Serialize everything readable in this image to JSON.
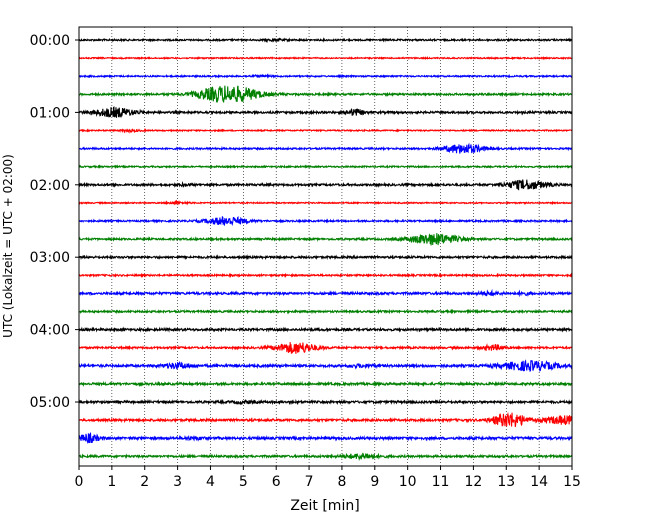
{
  "chart_data": {
    "type": "line",
    "title": "",
    "xlabel": "Zeit  [min]",
    "ylabel": "UTC (Lokalzeit = UTC + 02:00)",
    "xlim": [
      0,
      15
    ],
    "x_ticks": [
      "0",
      "1",
      "2",
      "3",
      "4",
      "5",
      "6",
      "7",
      "8",
      "9",
      "10",
      "11",
      "12",
      "13",
      "14",
      "15"
    ],
    "y_tick_labels": [
      "00:00",
      "01:00",
      "02:00",
      "03:00",
      "04:00",
      "05:00"
    ],
    "row_minutes": 15,
    "grid": "vertical dotted at each minute",
    "colors": [
      "#000000",
      "#ff0000",
      "#0000ff",
      "#008000"
    ],
    "traces": [
      {
        "row": 0,
        "color": "#000000",
        "noise": 0.8,
        "events": [
          [
            6.0,
            0.3,
            0.8
          ]
        ]
      },
      {
        "row": 1,
        "color": "#ff0000",
        "noise": 0.6,
        "events": []
      },
      {
        "row": 2,
        "color": "#0000ff",
        "noise": 0.7,
        "events": [
          [
            5.5,
            0.3,
            0.8
          ]
        ]
      },
      {
        "row": 3,
        "color": "#008000",
        "noise": 0.9,
        "events": [
          [
            4.7,
            0.8,
            7.5
          ],
          [
            4.0,
            0.6,
            2.5
          ]
        ]
      },
      {
        "row": 4,
        "color": "#000000",
        "noise": 1.0,
        "events": [
          [
            1.1,
            0.6,
            4.5
          ],
          [
            8.4,
            0.25,
            3.0
          ]
        ]
      },
      {
        "row": 5,
        "color": "#ff0000",
        "noise": 0.6,
        "events": [
          [
            1.6,
            0.3,
            0.8
          ]
        ]
      },
      {
        "row": 6,
        "color": "#0000ff",
        "noise": 0.8,
        "events": [
          [
            11.7,
            0.6,
            4.5
          ]
        ]
      },
      {
        "row": 7,
        "color": "#008000",
        "noise": 0.7,
        "events": []
      },
      {
        "row": 8,
        "color": "#000000",
        "noise": 1.0,
        "events": [
          [
            13.6,
            0.6,
            4.5
          ],
          [
            3.2,
            0.2,
            1.0
          ]
        ]
      },
      {
        "row": 9,
        "color": "#ff0000",
        "noise": 0.6,
        "events": [
          [
            3.0,
            0.3,
            1.0
          ]
        ]
      },
      {
        "row": 10,
        "color": "#0000ff",
        "noise": 0.8,
        "events": [
          [
            4.5,
            0.6,
            4.0
          ]
        ]
      },
      {
        "row": 11,
        "color": "#008000",
        "noise": 0.9,
        "events": [
          [
            10.8,
            0.7,
            5.5
          ]
        ]
      },
      {
        "row": 12,
        "color": "#000000",
        "noise": 1.0,
        "events": []
      },
      {
        "row": 13,
        "color": "#ff0000",
        "noise": 0.8,
        "events": []
      },
      {
        "row": 14,
        "color": "#0000ff",
        "noise": 1.1,
        "events": [
          [
            12.5,
            0.3,
            1.5
          ],
          [
            13.5,
            0.2,
            1.2
          ]
        ]
      },
      {
        "row": 15,
        "color": "#008000",
        "noise": 0.9,
        "events": []
      },
      {
        "row": 16,
        "color": "#000000",
        "noise": 1.1,
        "events": []
      },
      {
        "row": 17,
        "color": "#ff0000",
        "noise": 0.9,
        "events": [
          [
            6.6,
            0.6,
            5.5
          ],
          [
            12.6,
            0.3,
            2.5
          ]
        ]
      },
      {
        "row": 18,
        "color": "#0000ff",
        "noise": 1.2,
        "events": [
          [
            3.0,
            0.4,
            2.5
          ],
          [
            13.7,
            0.8,
            4.5
          ],
          [
            8.6,
            0.4,
            1.0
          ]
        ]
      },
      {
        "row": 19,
        "color": "#008000",
        "noise": 1.1,
        "events": []
      },
      {
        "row": 20,
        "color": "#000000",
        "noise": 1.1,
        "events": [
          [
            5.0,
            0.3,
            1.0
          ]
        ]
      },
      {
        "row": 21,
        "color": "#ff0000",
        "noise": 1.1,
        "events": [
          [
            13.1,
            0.5,
            7.0
          ],
          [
            14.8,
            0.6,
            4.0
          ]
        ]
      },
      {
        "row": 22,
        "color": "#0000ff",
        "noise": 1.2,
        "events": [
          [
            0.3,
            0.3,
            4.0
          ],
          [
            3.5,
            0.3,
            1.0
          ]
        ]
      },
      {
        "row": 23,
        "color": "#008000",
        "noise": 1.0,
        "events": [
          [
            8.6,
            0.5,
            2.5
          ]
        ]
      }
    ]
  }
}
